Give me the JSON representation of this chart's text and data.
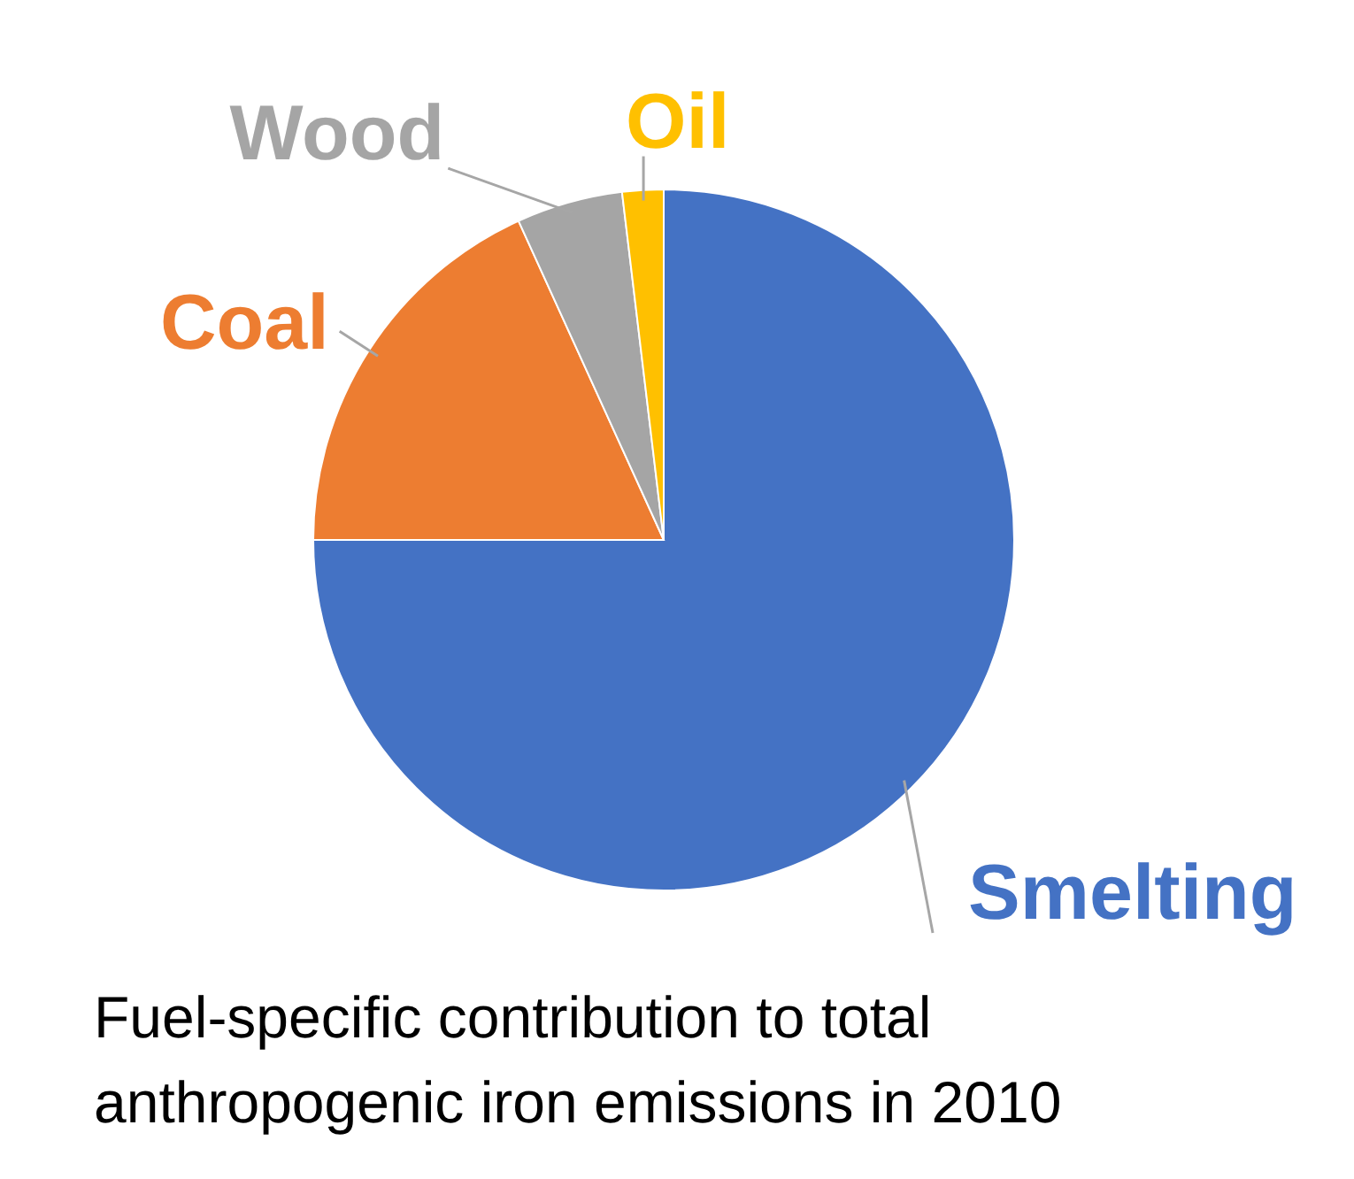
{
  "chart_data": {
    "type": "pie",
    "title": "Fuel-specific contribution to total anthropogenic iron emissions in 2010",
    "categories": [
      "Smelting",
      "Coal",
      "Wood",
      "Oil"
    ],
    "values": [
      75,
      18.2,
      4.9,
      1.9
    ],
    "colors": [
      "#4472c4",
      "#ed7d31",
      "#a5a5a5",
      "#ffc000"
    ]
  }
}
